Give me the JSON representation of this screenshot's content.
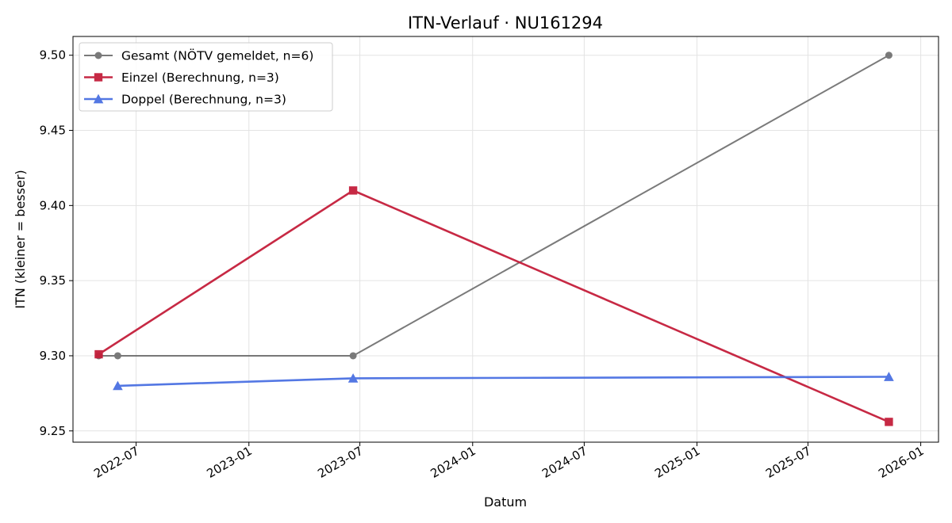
{
  "chart_data": {
    "type": "line",
    "title": "ITN-Verlauf · NU161294",
    "xlabel": "Datum",
    "ylabel": "ITN  (kleiner = besser)",
    "x_type": "date",
    "xlim": [
      "2022-03-20",
      "2026-01-30"
    ],
    "ylim": [
      9.2425,
      9.5125
    ],
    "x_ticks": [
      "2022-07-01",
      "2023-01-01",
      "2023-07-01",
      "2024-01-01",
      "2024-07-01",
      "2025-01-01",
      "2025-07-01",
      "2026-01-01"
    ],
    "x_tick_labels": [
      "2022-07",
      "2023-01",
      "2023-07",
      "2024-01",
      "2024-07",
      "2025-01",
      "2025-07",
      "2026-01"
    ],
    "y_ticks": [
      9.25,
      9.3,
      9.35,
      9.4,
      9.45,
      9.5
    ],
    "y_tick_labels": [
      "9.25",
      "9.30",
      "9.35",
      "9.40",
      "9.45",
      "9.50"
    ],
    "grid": true,
    "legend_position": "top-left",
    "series": [
      {
        "name": "Gesamt (NÖTV gemeldet, n=6)",
        "color": "#555555",
        "marker": "circle",
        "points": [
          {
            "x": "2022-05-01",
            "y": 9.3
          },
          {
            "x": "2022-06-01",
            "y": 9.3
          },
          {
            "x": "2023-06-20",
            "y": 9.3
          },
          {
            "x": "2025-11-10",
            "y": 9.5
          }
        ]
      },
      {
        "name": "Einzel (Berechnung, n=3)",
        "color": "#c41e3a",
        "marker": "square",
        "points": [
          {
            "x": "2022-05-01",
            "y": 9.301
          },
          {
            "x": "2023-06-20",
            "y": 9.41
          },
          {
            "x": "2025-11-10",
            "y": 9.256
          }
        ]
      },
      {
        "name": "Doppel (Berechnung, n=3)",
        "color": "#4169e1",
        "marker": "triangle",
        "points": [
          {
            "x": "2022-06-01",
            "y": 9.28
          },
          {
            "x": "2023-06-20",
            "y": 9.285
          },
          {
            "x": "2025-11-10",
            "y": 9.286
          }
        ]
      }
    ]
  }
}
